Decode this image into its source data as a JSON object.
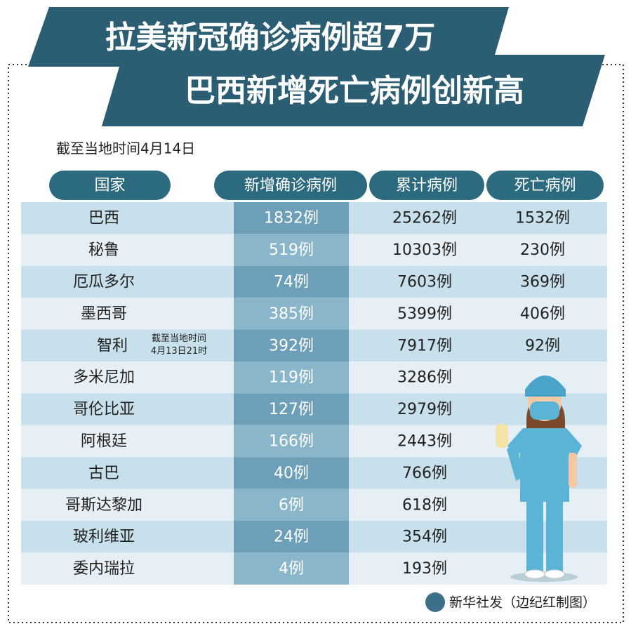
{
  "header": {
    "title_line1": "拉美新冠确诊病例超7万",
    "title_line2": "巴西新增死亡病例创新高"
  },
  "subtitle": "截至当地时间4月14日",
  "table": {
    "columns": [
      "国家",
      "新增确诊病例",
      "累计病例",
      "死亡病例"
    ],
    "rows": [
      [
        "巴西",
        "1832例",
        "25262例",
        "1532例"
      ],
      [
        "秘鲁",
        "519例",
        "10303例",
        "230例"
      ],
      [
        "厄瓜多尔",
        "74例",
        "7603例",
        "369例"
      ],
      [
        "墨西哥",
        "385例",
        "5399例",
        "406例"
      ],
      [
        "智利",
        "392例",
        "7917例",
        "92例"
      ],
      [
        "多米尼加",
        "119例",
        "3286例"
      ],
      [
        "哥伦比亚",
        "127例",
        "2979例"
      ],
      [
        "阿根廷",
        "166例",
        "2443例"
      ],
      [
        "古巴",
        "40例",
        "766例"
      ],
      [
        "哥斯达黎加",
        "6例",
        "618例"
      ],
      [
        "玻利维亚",
        "24例",
        "354例"
      ],
      [
        "委内瑞拉",
        "4例",
        "193例"
      ]
    ]
  },
  "note": {
    "line1": "截至当地时间",
    "line2": "4月13日21时"
  },
  "credit": "新华社发（边纪红制图）"
}
